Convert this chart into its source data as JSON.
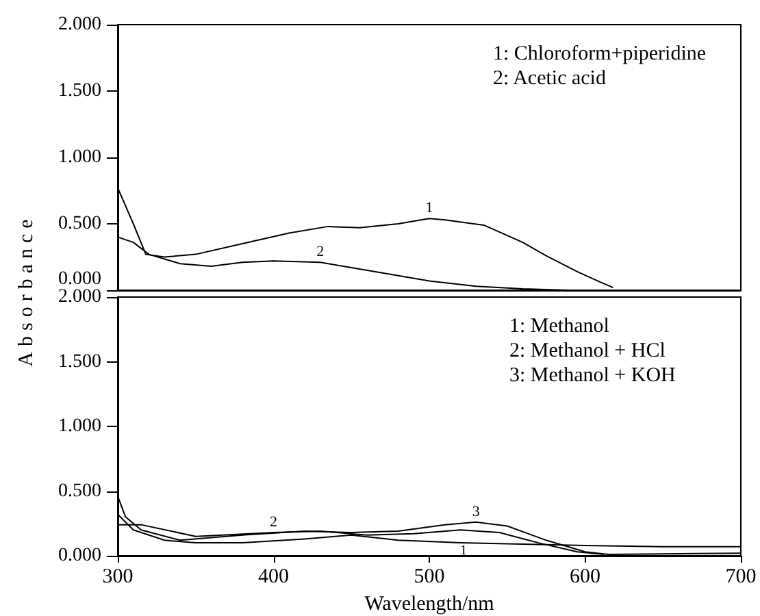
{
  "chart_data": [
    {
      "type": "line",
      "ylabel": "Absorbance",
      "xlim": [
        300,
        700
      ],
      "xticks": [
        300,
        400,
        500,
        600,
        700
      ],
      "ylim": [
        0,
        2
      ],
      "yticks": [
        {
          "value": 0,
          "label": "0.000"
        },
        {
          "value": 0.5,
          "label": "0.500"
        },
        {
          "value": 1,
          "label": "1.000"
        },
        {
          "value": 1.5,
          "label": "1.500"
        },
        {
          "value": 2,
          "label": "2.000"
        }
      ],
      "tick_labels": "y",
      "grid": false,
      "marker": "none",
      "line_style": "solid",
      "series": [
        {
          "color": "#000000",
          "x": [
            300,
            310,
            318,
            330,
            350,
            380,
            410,
            435,
            455,
            480,
            500,
            510,
            535,
            560,
            575,
            595,
            610,
            618
          ],
          "values": [
            0.77,
            0.5,
            0.27,
            0.25,
            0.27,
            0.35,
            0.43,
            0.48,
            0.47,
            0.5,
            0.54,
            0.53,
            0.49,
            0.36,
            0.26,
            0.14,
            0.06,
            0.02
          ]
        },
        {
          "color": "#000000",
          "x": [
            300,
            310,
            320,
            340,
            360,
            380,
            400,
            430,
            450,
            475,
            500,
            530,
            560,
            590
          ],
          "values": [
            0.4,
            0.36,
            0.27,
            0.2,
            0.18,
            0.21,
            0.22,
            0.21,
            0.17,
            0.12,
            0.07,
            0.03,
            0.01,
            0
          ]
        }
      ],
      "annotations": [
        "1: Chloroform+piperidine",
        "2: Acetic acid",
        {
          "text": "1",
          "x": 500,
          "y": 0.54
        },
        {
          "text": "2",
          "x": 430,
          "y": 0.21
        }
      ]
    },
    {
      "type": "line",
      "xlabel": "Wavelength/nm",
      "xlim": [
        300,
        700
      ],
      "xticks": [
        300,
        400,
        500,
        600,
        700
      ],
      "ylim": [
        0,
        2
      ],
      "yticks": [
        {
          "value": 0,
          "label": "0.000"
        },
        {
          "value": 0.5,
          "label": "0.500"
        },
        {
          "value": 1,
          "label": "1.000"
        },
        {
          "value": 1.5,
          "label": "1.500"
        },
        {
          "value": 2,
          "label": "2.000"
        }
      ],
      "grid": false,
      "marker": "none",
      "line_style": "solid",
      "series": [
        {
          "color": "#000000",
          "x": [
            300,
            310,
            330,
            350,
            380,
            420,
            450,
            480,
            520,
            560,
            600,
            650,
            700
          ],
          "values": [
            0.32,
            0.2,
            0.12,
            0.1,
            0.1,
            0.13,
            0.16,
            0.12,
            0.1,
            0.09,
            0.08,
            0.07,
            0.07
          ]
        },
        {
          "color": "#000000",
          "x": [
            300,
            315,
            350,
            400,
            430,
            460,
            490,
            520,
            545,
            570,
            595,
            612
          ],
          "values": [
            0.24,
            0.24,
            0.15,
            0.18,
            0.19,
            0.16,
            0.17,
            0.2,
            0.18,
            0.1,
            0.03,
            0.01
          ]
        },
        {
          "color": "#000000",
          "x": [
            300,
            305,
            315,
            340,
            380,
            420,
            450,
            480,
            510,
            530,
            550,
            575,
            600,
            615,
            700
          ],
          "values": [
            0.46,
            0.3,
            0.2,
            0.12,
            0.16,
            0.19,
            0.18,
            0.19,
            0.24,
            0.26,
            0.23,
            0.12,
            0.03,
            0.01,
            0.02
          ]
        }
      ],
      "annotations": [
        "1: Methanol",
        "2: Methanol + HCl",
        "3: Methanol + KOH",
        {
          "text": "2",
          "x": 400,
          "y": 0.18
        },
        {
          "text": "3",
          "x": 530,
          "y": 0.26
        },
        {
          "text": "1",
          "x": 522,
          "y": 0.1
        }
      ]
    }
  ]
}
